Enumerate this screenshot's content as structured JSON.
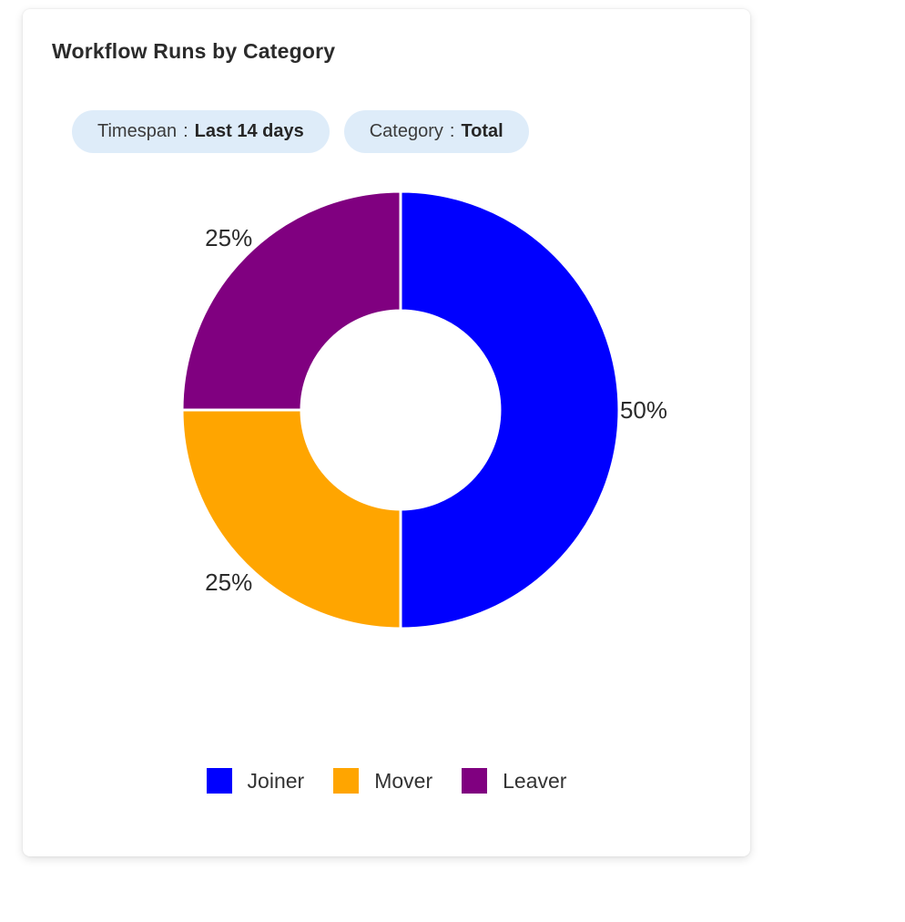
{
  "card": {
    "title": "Workflow Runs by Category"
  },
  "filters": [
    {
      "label": "Timespan",
      "separator": ":",
      "value": "Last 14 days"
    },
    {
      "label": "Category",
      "separator": ":",
      "value": "Total"
    }
  ],
  "chart_data": {
    "type": "pie",
    "subtype": "donut",
    "title": "Workflow Runs by Category",
    "categories": [
      "Joiner",
      "Mover",
      "Leaver"
    ],
    "values": [
      50,
      25,
      25
    ],
    "unit": "%",
    "start_angle_deg": 0,
    "clockwise": true,
    "label_position": "outside",
    "legend_position": "bottom",
    "slices": [
      {
        "label": "Joiner",
        "value": 50,
        "display": "50%",
        "color": "#0000ff"
      },
      {
        "label": "Mover",
        "value": 25,
        "display": "25%",
        "color": "#ffa500"
      },
      {
        "label": "Leaver",
        "value": 25,
        "display": "25%",
        "color": "#800080"
      }
    ]
  },
  "legend": [
    {
      "label": "Joiner",
      "color": "#0000ff"
    },
    {
      "label": "Mover",
      "color": "#ffa500"
    },
    {
      "label": "Leaver",
      "color": "#800080"
    }
  ],
  "colors": {
    "pill_background": "#deecf9",
    "title_text": "#2b2b2b",
    "label_text": "#2b2b2b",
    "slice_separator": "#ffffff"
  }
}
